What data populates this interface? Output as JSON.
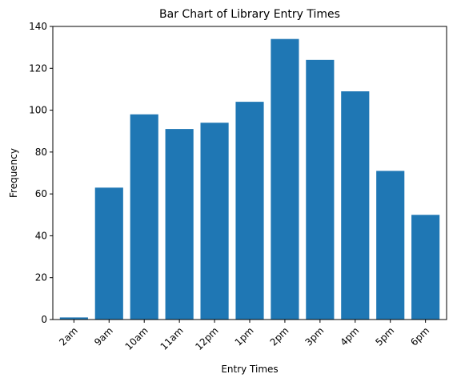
{
  "chart_data": {
    "type": "bar",
    "title": "Bar Chart of Library Entry Times",
    "xlabel": "Entry Times",
    "ylabel": "Frequency",
    "categories": [
      "2am",
      "9am",
      "10am",
      "11am",
      "12pm",
      "1pm",
      "2pm",
      "3pm",
      "4pm",
      "5pm",
      "6pm"
    ],
    "values": [
      1,
      63,
      98,
      91,
      94,
      104,
      134,
      124,
      109,
      71,
      50
    ],
    "ylim": [
      0,
      140
    ],
    "yticks": [
      0,
      20,
      40,
      60,
      80,
      100,
      120,
      140
    ],
    "grid": false,
    "bar_color": "#1f77b4",
    "xtick_rotation_deg": 45
  }
}
